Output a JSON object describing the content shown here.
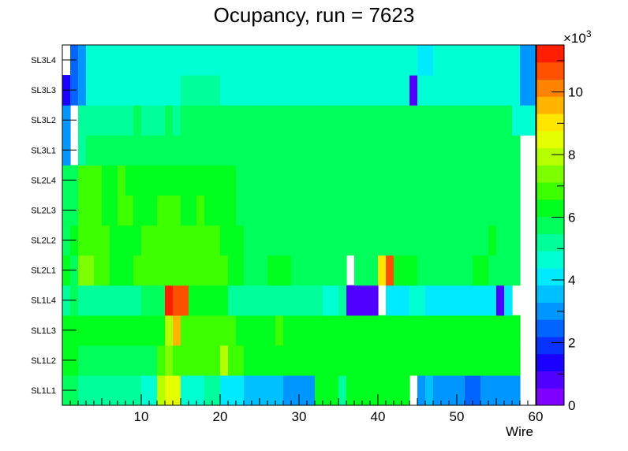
{
  "chart_data": {
    "type": "heatmap",
    "title": "Ocupancy, run = 7623",
    "xlabel": "Wire",
    "ylabel": "",
    "x_range": [
      0,
      60
    ],
    "x_ticks": [
      10,
      20,
      30,
      40,
      50,
      60
    ],
    "rows": [
      "SL1L1",
      "SL1L2",
      "SL1L3",
      "SL1L4",
      "SL2L1",
      "SL2L2",
      "SL2L3",
      "SL2L4",
      "SL3L1",
      "SL3L2",
      "SL3L3",
      "SL3L4"
    ],
    "z_range": [
      0,
      11500
    ],
    "z_multiplier_label": "×10",
    "z_multiplier_exponent": "3",
    "z_ticks": [
      0,
      2,
      4,
      6,
      8,
      10
    ],
    "grid": false,
    "values": [
      [
        6.0,
        6.0,
        5.2,
        5.2,
        5.2,
        5.2,
        5.2,
        5.2,
        5.2,
        5.2,
        4.5,
        4.5,
        7.8,
        8.6,
        8.6,
        4.5,
        4.5,
        4.5,
        5.2,
        5.2,
        4.3,
        4.3,
        4.3,
        3.7,
        3.7,
        3.7,
        3.7,
        3.5,
        3.1,
        3.1,
        3.1,
        3.1,
        6.5,
        6.5,
        6.5,
        5.2,
        6.5,
        6.5,
        6.5,
        6.5,
        6.5,
        6.5,
        6.5,
        6.5,
        0,
        3.1,
        3.7,
        2.9,
        2.9,
        2.9,
        2.9,
        2.3,
        2.3,
        3.1,
        3.1,
        3.1,
        3.1,
        3.1,
        0,
        0
      ],
      [
        6.5,
        6.5,
        6.0,
        6.0,
        6.0,
        6.0,
        6.0,
        6.0,
        6.0,
        6.0,
        6.0,
        6.0,
        7.0,
        7.5,
        7.0,
        7.0,
        7.0,
        7.0,
        7.0,
        7.0,
        8.0,
        7.0,
        7.0,
        6.5,
        6.5,
        6.5,
        6.5,
        6.5,
        6.5,
        6.5,
        6.5,
        6.5,
        6.5,
        6.5,
        6.5,
        6.5,
        6.5,
        6.5,
        6.5,
        6.5,
        6.5,
        6.5,
        6.5,
        6.5,
        6.5,
        6.5,
        6.5,
        6.5,
        6.5,
        6.5,
        6.5,
        6.5,
        6.5,
        6.5,
        6.5,
        6.5,
        6.5,
        6.5,
        0,
        0
      ],
      [
        6.5,
        6.5,
        6.5,
        6.5,
        6.5,
        6.5,
        6.5,
        6.5,
        6.5,
        6.5,
        6.5,
        6.5,
        6.5,
        8.0,
        9.5,
        7.0,
        7.0,
        7.0,
        7.0,
        7.0,
        7.0,
        7.0,
        6.5,
        6.5,
        6.5,
        6.5,
        6.5,
        7.0,
        6.5,
        6.5,
        6.5,
        6.5,
        6.5,
        6.5,
        6.5,
        6.5,
        6.5,
        6.5,
        6.5,
        6.5,
        6.5,
        6.5,
        6.5,
        6.5,
        6.5,
        6.5,
        6.5,
        6.5,
        6.5,
        6.5,
        6.5,
        6.5,
        6.5,
        6.5,
        6.5,
        6.5,
        6.5,
        6.5,
        0,
        0
      ],
      [
        5.2,
        6.0,
        5.2,
        5.2,
        5.2,
        5.2,
        5.2,
        5.2,
        5.2,
        5.2,
        6.0,
        6.0,
        6.0,
        11.0,
        10.5,
        10.5,
        6.5,
        6.5,
        6.5,
        6.5,
        6.5,
        5.2,
        5.2,
        5.2,
        5.2,
        5.2,
        5.2,
        5.2,
        5.2,
        5.2,
        5.2,
        5.2,
        5.2,
        4.5,
        4.5,
        5.2,
        0.8,
        0.8,
        0.8,
        0.8,
        0,
        4.3,
        4.3,
        4.3,
        4.5,
        4.5,
        4.3,
        4.3,
        4.3,
        4.3,
        4.3,
        4.3,
        4.3,
        4.3,
        4.3,
        0.8,
        4.3,
        0,
        0,
        0
      ],
      [
        6.5,
        6.0,
        7.5,
        7.5,
        7.0,
        7.0,
        6.5,
        6.5,
        6.5,
        7.0,
        7.0,
        7.0,
        7.0,
        7.0,
        7.0,
        7.0,
        7.0,
        7.0,
        7.0,
        7.0,
        7.0,
        6.5,
        6.5,
        6.0,
        6.0,
        6.0,
        6.5,
        6.5,
        6.5,
        6.0,
        6.0,
        6.0,
        6.0,
        6.0,
        6.0,
        6.0,
        0,
        6.0,
        6.0,
        6.0,
        8.8,
        10.8,
        6.5,
        6.5,
        6.5,
        5.5,
        5.5,
        5.5,
        5.5,
        5.5,
        5.5,
        5.5,
        6.5,
        6.5,
        6.0,
        6.0,
        6.0,
        5.5,
        0,
        0
      ],
      [
        6.0,
        6.5,
        7.0,
        7.0,
        7.0,
        7.0,
        6.5,
        6.5,
        6.5,
        6.5,
        7.0,
        7.0,
        7.0,
        7.0,
        7.0,
        7.0,
        7.0,
        7.0,
        7.0,
        7.0,
        6.5,
        6.5,
        6.5,
        6.0,
        6.0,
        6.0,
        6.0,
        6.0,
        6.0,
        6.0,
        6.0,
        6.0,
        6.0,
        6.0,
        6.0,
        5.5,
        5.5,
        5.5,
        5.5,
        5.5,
        5.5,
        5.5,
        5.5,
        5.5,
        5.5,
        5.5,
        5.5,
        5.5,
        5.5,
        5.5,
        5.5,
        5.5,
        5.5,
        6.0,
        6.5,
        6.0,
        5.5,
        5.5,
        0,
        0
      ],
      [
        6.0,
        6.0,
        7.0,
        7.0,
        7.0,
        6.5,
        6.5,
        7.0,
        7.0,
        6.5,
        6.5,
        6.5,
        7.0,
        7.0,
        7.0,
        6.5,
        6.5,
        7.0,
        6.5,
        6.5,
        6.5,
        6.5,
        6.0,
        6.0,
        6.0,
        6.0,
        6.0,
        6.0,
        6.0,
        6.0,
        6.0,
        5.5,
        5.5,
        5.5,
        5.5,
        5.5,
        5.5,
        5.5,
        5.5,
        5.5,
        5.5,
        5.5,
        5.5,
        5.5,
        5.5,
        5.5,
        5.5,
        5.5,
        5.5,
        5.5,
        5.5,
        5.5,
        5.5,
        5.5,
        5.5,
        6.0,
        5.5,
        5.5,
        0,
        0
      ],
      [
        5.5,
        6.0,
        7.0,
        7.0,
        7.0,
        6.5,
        6.5,
        7.0,
        6.5,
        6.5,
        6.5,
        6.5,
        6.5,
        6.5,
        6.5,
        6.5,
        6.5,
        6.5,
        6.5,
        6.5,
        6.5,
        6.5,
        5.5,
        5.5,
        5.5,
        5.5,
        5.5,
        5.5,
        5.5,
        5.5,
        6.0,
        5.5,
        5.5,
        5.5,
        5.5,
        5.5,
        5.5,
        5.5,
        5.5,
        5.5,
        5.5,
        5.5,
        5.5,
        5.5,
        5.5,
        5.5,
        5.5,
        5.5,
        5.5,
        5.5,
        5.5,
        5.5,
        5.5,
        5.5,
        5.5,
        5.5,
        5.5,
        5.5,
        0,
        0
      ],
      [
        3.0,
        0,
        5.0,
        5.5,
        5.5,
        5.5,
        5.5,
        5.5,
        5.5,
        5.5,
        5.5,
        5.5,
        5.5,
        5.5,
        5.5,
        5.5,
        5.5,
        5.5,
        5.5,
        5.5,
        5.5,
        5.5,
        5.5,
        5.5,
        5.5,
        5.5,
        5.5,
        5.5,
        5.5,
        5.5,
        5.5,
        5.5,
        5.5,
        5.5,
        5.5,
        5.5,
        5.5,
        5.5,
        5.5,
        5.5,
        5.5,
        5.5,
        5.5,
        5.5,
        5.5,
        5.5,
        5.5,
        5.5,
        5.5,
        5.5,
        5.5,
        5.5,
        5.5,
        5.5,
        5.5,
        5.5,
        5.5,
        5.5,
        0,
        0
      ],
      [
        3.0,
        0,
        5.0,
        5.0,
        5.0,
        5.0,
        5.0,
        5.0,
        5.0,
        5.5,
        5.0,
        5.0,
        5.0,
        5.5,
        5.0,
        5.5,
        5.5,
        5.5,
        5.5,
        5.5,
        5.5,
        5.5,
        5.5,
        5.5,
        5.5,
        5.5,
        5.5,
        5.5,
        5.5,
        5.5,
        5.5,
        5.5,
        5.5,
        5.5,
        5.5,
        5.5,
        5.5,
        5.5,
        5.5,
        5.5,
        5.5,
        5.5,
        5.5,
        5.5,
        5.5,
        5.5,
        5.5,
        5.5,
        5.5,
        5.5,
        5.5,
        5.5,
        5.5,
        5.5,
        5.5,
        5.5,
        5.5,
        4.5,
        4.5,
        4.5
      ],
      [
        1.5,
        2.5,
        3.2,
        4.5,
        4.5,
        4.5,
        4.5,
        4.5,
        4.5,
        4.5,
        4.5,
        4.5,
        4.5,
        4.5,
        4.5,
        5.0,
        5.0,
        5.0,
        5.0,
        5.0,
        4.5,
        4.5,
        4.5,
        4.5,
        4.5,
        4.5,
        4.5,
        4.5,
        4.5,
        4.5,
        4.5,
        4.5,
        4.5,
        4.5,
        4.5,
        4.5,
        4.5,
        4.5,
        4.5,
        4.5,
        4.5,
        4.5,
        4.5,
        4.5,
        1.0,
        4.5,
        4.5,
        4.5,
        4.5,
        4.5,
        4.5,
        4.5,
        4.5,
        4.5,
        4.5,
        4.5,
        4.5,
        4.5,
        3.0,
        3.0
      ],
      [
        0,
        2.5,
        3.0,
        4.5,
        4.5,
        4.5,
        4.5,
        4.5,
        4.5,
        4.5,
        4.5,
        4.5,
        4.5,
        4.5,
        4.5,
        4.5,
        4.5,
        4.5,
        4.5,
        4.5,
        4.5,
        4.5,
        4.5,
        4.5,
        4.5,
        4.5,
        4.5,
        4.5,
        4.5,
        4.5,
        4.5,
        4.5,
        4.5,
        4.5,
        4.5,
        4.5,
        4.5,
        4.5,
        4.5,
        4.5,
        4.5,
        4.5,
        4.5,
        4.5,
        4.5,
        4.2,
        4.2,
        4.5,
        4.5,
        4.5,
        4.5,
        4.5,
        4.5,
        4.5,
        4.5,
        4.5,
        4.5,
        4.5,
        3.0,
        3.0
      ]
    ]
  }
}
